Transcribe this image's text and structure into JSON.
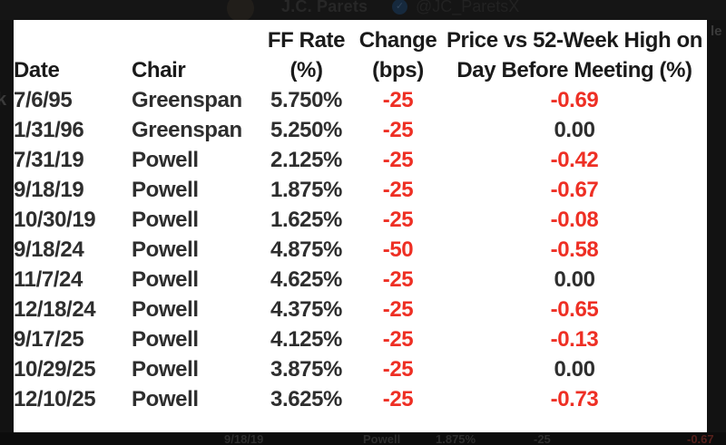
{
  "colors": {
    "negative_red": "#ee2f24",
    "text_dark": "#2e2e2e",
    "header_text": "#1a1a1a",
    "card_background": "#ffffff",
    "page_background": "#121212"
  },
  "background_tweet": {
    "author": "J.C. Parets",
    "handle": "@JC_ParetsX",
    "verified_badge": "✓"
  },
  "chart_data": {
    "type": "table",
    "title": "Fed rate cuts: FF rate, change, and S&P price vs 52-week high on day before meeting",
    "columns": [
      {
        "line1": "",
        "line2": "Date"
      },
      {
        "line1": "",
        "line2": "Chair"
      },
      {
        "line1": "FF Rate",
        "line2": "(%)"
      },
      {
        "line1": "Change",
        "line2": "(bps)"
      },
      {
        "line1": "Price vs 52-Week High on",
        "line2": "Day Before Meeting (%)"
      }
    ],
    "rows": [
      {
        "date": "7/6/95",
        "chair": "Greenspan",
        "ff_rate": "5.750%",
        "change_bps": "-25",
        "price_vs_52wk_high": "-0.69"
      },
      {
        "date": "1/31/96",
        "chair": "Greenspan",
        "ff_rate": "5.250%",
        "change_bps": "-25",
        "price_vs_52wk_high": "0.00"
      },
      {
        "date": "7/31/19",
        "chair": "Powell",
        "ff_rate": "2.125%",
        "change_bps": "-25",
        "price_vs_52wk_high": "-0.42"
      },
      {
        "date": "9/18/19",
        "chair": "Powell",
        "ff_rate": "1.875%",
        "change_bps": "-25",
        "price_vs_52wk_high": "-0.67"
      },
      {
        "date": "10/30/19",
        "chair": "Powell",
        "ff_rate": "1.625%",
        "change_bps": "-25",
        "price_vs_52wk_high": "-0.08"
      },
      {
        "date": "9/18/24",
        "chair": "Powell",
        "ff_rate": "4.875%",
        "change_bps": "-50",
        "price_vs_52wk_high": "-0.58"
      },
      {
        "date": "11/7/24",
        "chair": "Powell",
        "ff_rate": "4.625%",
        "change_bps": "-25",
        "price_vs_52wk_high": "0.00"
      },
      {
        "date": "12/18/24",
        "chair": "Powell",
        "ff_rate": "4.375%",
        "change_bps": "-25",
        "price_vs_52wk_high": "-0.65"
      },
      {
        "date": "9/17/25",
        "chair": "Powell",
        "ff_rate": "4.125%",
        "change_bps": "-25",
        "price_vs_52wk_high": "-0.13"
      },
      {
        "date": "10/29/25",
        "chair": "Powell",
        "ff_rate": "3.875%",
        "change_bps": "-25",
        "price_vs_52wk_high": "0.00"
      },
      {
        "date": "12/10/25",
        "chair": "Powell",
        "ff_rate": "3.625%",
        "change_bps": "-25",
        "price_vs_52wk_high": "-0.73"
      }
    ]
  },
  "background_fragments": {
    "top_right": "le",
    "left_edge": "k",
    "bottom_row": {
      "date": "9/18/19",
      "chair": "Powell",
      "ff_rate": "1.875%",
      "change_bps": "-25",
      "price_vs_52wk_high": "-0.67"
    }
  }
}
